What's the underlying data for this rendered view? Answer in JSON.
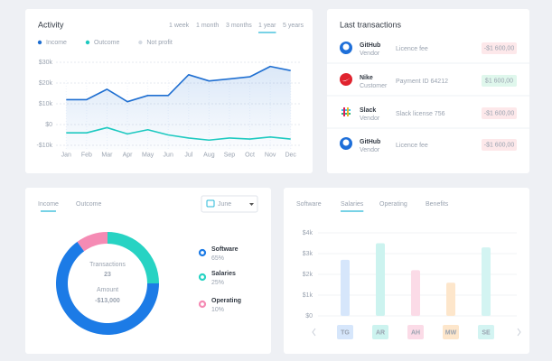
{
  "chart_data": [
    {
      "type": "line",
      "title": "Activity",
      "tabs": [
        "1 week",
        "1 month",
        "3 months",
        "1 year",
        "5 years"
      ],
      "active_tab": 3,
      "categories": [
        "Jan",
        "Feb",
        "Mar",
        "Apr",
        "May",
        "Jun",
        "Jul",
        "Aug",
        "Sep",
        "Oct",
        "Nov",
        "Dec"
      ],
      "series": [
        {
          "name": "Income",
          "color": "#1f6fd1",
          "values": [
            12000,
            12000,
            17000,
            11000,
            14000,
            14000,
            24000,
            21000,
            22000,
            23000,
            28000,
            26000
          ]
        },
        {
          "name": "Outcome",
          "color": "#1dc9c0",
          "values": [
            -4000,
            -4000,
            -1500,
            -4500,
            -2500,
            -5000,
            -6500,
            -7500,
            -6500,
            -7000,
            -6000,
            -7000
          ]
        },
        {
          "name": "Not profit",
          "color": "#d5dbe3"
        }
      ],
      "ylim": [
        -12000,
        30000
      ],
      "yticks": [
        {
          "value": -10000,
          "label": "-$10k"
        },
        {
          "value": 0,
          "label": "$0"
        },
        {
          "value": 10000,
          "label": "$10k"
        },
        {
          "value": 20000,
          "label": "$20k"
        },
        {
          "value": 30000,
          "label": "$30k"
        }
      ],
      "grid": true
    },
    {
      "type": "pie",
      "donut": true,
      "tabs": [
        "Income",
        "Outcome"
      ],
      "active_tab": 0,
      "dropdown": "June",
      "center_labels": [
        "Transactions",
        "23",
        "Amount",
        "-$13,000"
      ],
      "categories": [
        "Software",
        "Salaries",
        "Operating"
      ],
      "values": [
        65,
        25,
        10
      ],
      "value_labels": [
        "65%",
        "25%",
        "10%"
      ],
      "colors": [
        "#1c7be6",
        "#27d3c3",
        "#f58bb4"
      ],
      "draw_order": [
        1,
        0,
        2
      ],
      "start_angle": 0
    },
    {
      "type": "bar",
      "tabs": [
        "Software",
        "Salaries",
        "Operating",
        "Benefits"
      ],
      "active_tab": 1,
      "categories": [
        "TG",
        "AR",
        "AH",
        "MW",
        "SE"
      ],
      "values": [
        2700,
        3500,
        2200,
        1600,
        3300
      ],
      "colors": [
        "#d6e6fb",
        "#ccf3ef",
        "#fbdbe7",
        "#fde6cb",
        "#d3f4f2"
      ],
      "label_colors": [
        "#2f78d0",
        "#22bdb0",
        "#e8739f",
        "#f0a24a",
        "#20b8ad"
      ],
      "ylim": [
        0,
        4000
      ],
      "yticks": [
        {
          "value": 0,
          "label": "$0"
        },
        {
          "value": 1000,
          "label": "$1k"
        },
        {
          "value": 2000,
          "label": "$2k"
        },
        {
          "value": 3000,
          "label": "$3k"
        },
        {
          "value": 4000,
          "label": "$4k"
        }
      ],
      "grid": true
    }
  ],
  "transactions": {
    "title": "Last transactions",
    "rows": [
      {
        "name": "GitHub",
        "role": "Vendor",
        "description": "Licence fee",
        "amount": "-$1 600,00"
      },
      {
        "name": "Nike",
        "role": "Customer",
        "description": "Payment ID 64212",
        "amount": "$1 600,00"
      },
      {
        "name": "Slack",
        "role": "Vendor",
        "description": "Slack license 756",
        "amount": "-$1 600,00"
      },
      {
        "name": "GitHub",
        "role": "Vendor",
        "description": "Licence fee",
        "amount": "-$1 600,00"
      }
    ]
  }
}
